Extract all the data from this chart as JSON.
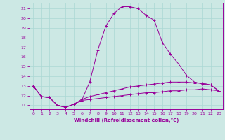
{
  "xlabel": "Windchill (Refroidissement éolien,°C)",
  "x_ticks": [
    0,
    1,
    2,
    3,
    4,
    5,
    6,
    7,
    8,
    9,
    10,
    11,
    12,
    13,
    14,
    15,
    16,
    17,
    18,
    19,
    20,
    21,
    22,
    23
  ],
  "yticks": [
    11,
    12,
    13,
    14,
    15,
    16,
    17,
    18,
    19,
    20,
    21
  ],
  "xlim": [
    -0.5,
    23.5
  ],
  "ylim": [
    10.6,
    21.6
  ],
  "bg_color": "#cce8e4",
  "line_color": "#990099",
  "grid_color": "#aad8d4",
  "series1": {
    "x": [
      0,
      1,
      2,
      3,
      4,
      5,
      6,
      7,
      8,
      9,
      10,
      11,
      12,
      13,
      14,
      15,
      16,
      17,
      18,
      19,
      20,
      21,
      22,
      23
    ],
    "y": [
      13.0,
      11.9,
      11.8,
      11.0,
      10.8,
      11.1,
      11.5,
      13.4,
      16.7,
      19.2,
      20.5,
      21.2,
      21.2,
      21.0,
      20.3,
      19.8,
      17.5,
      16.3,
      15.3,
      14.1,
      13.4,
      13.2,
      13.1,
      12.5
    ]
  },
  "series2": {
    "x": [
      0,
      1,
      2,
      3,
      4,
      5,
      6,
      7,
      8,
      9,
      10,
      11,
      12,
      13,
      14,
      15,
      16,
      17,
      18,
      19,
      20,
      21,
      22,
      23
    ],
    "y": [
      13.0,
      11.9,
      11.8,
      11.0,
      10.8,
      11.1,
      11.6,
      11.9,
      12.1,
      12.3,
      12.5,
      12.7,
      12.9,
      13.0,
      13.1,
      13.2,
      13.3,
      13.4,
      13.4,
      13.4,
      13.3,
      13.3,
      13.1,
      12.5
    ]
  },
  "series3": {
    "x": [
      0,
      1,
      2,
      3,
      4,
      5,
      6,
      7,
      8,
      9,
      10,
      11,
      12,
      13,
      14,
      15,
      16,
      17,
      18,
      19,
      20,
      21,
      22,
      23
    ],
    "y": [
      13.0,
      11.9,
      11.8,
      11.0,
      10.8,
      11.1,
      11.5,
      11.6,
      11.7,
      11.8,
      11.9,
      12.0,
      12.1,
      12.2,
      12.3,
      12.3,
      12.4,
      12.5,
      12.5,
      12.6,
      12.6,
      12.7,
      12.6,
      12.5
    ]
  }
}
